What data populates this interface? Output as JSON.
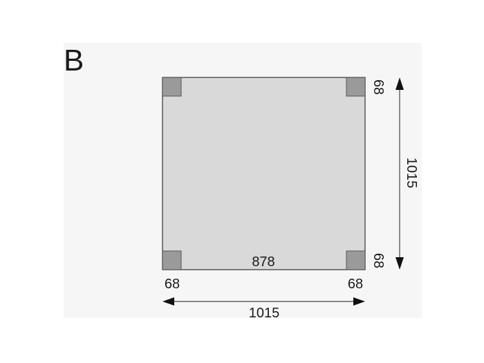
{
  "label": "B",
  "dimensions": {
    "inner_width": "878",
    "total_width": "1015",
    "total_depth": "1015",
    "post_bottom_left": "68",
    "post_bottom_right": "68",
    "post_right_top": "68",
    "post_right_bottom": "68"
  },
  "colors": {
    "panel": "#f6f6f6",
    "floor": "#d9d9d9",
    "post": "#9a9a9a",
    "outline": "#555555"
  }
}
